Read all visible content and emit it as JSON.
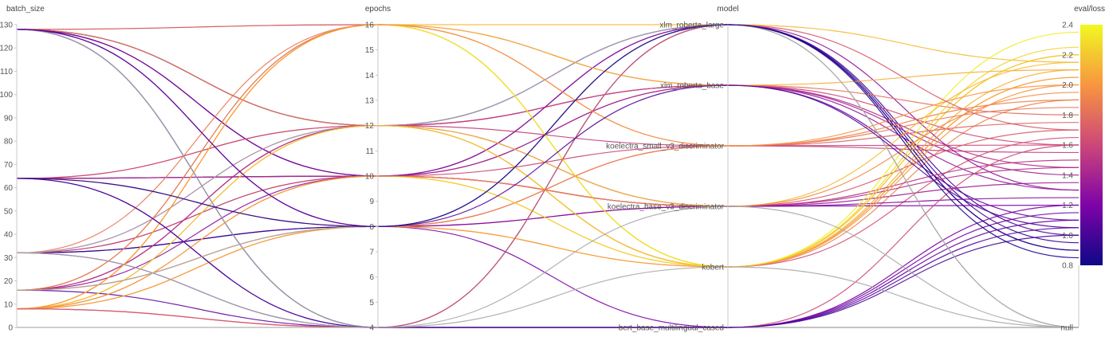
{
  "chart_data": {
    "type": "parallel_coordinates",
    "axes": [
      {
        "name": "batch_size",
        "kind": "numeric",
        "range": [
          0,
          130
        ],
        "ticks": [
          0,
          10,
          20,
          30,
          40,
          50,
          60,
          70,
          80,
          90,
          100,
          110,
          120,
          130
        ]
      },
      {
        "name": "epochs",
        "kind": "numeric",
        "range": [
          4,
          16
        ],
        "ticks": [
          4,
          5,
          6,
          7,
          8,
          9,
          10,
          11,
          12,
          13,
          14,
          15,
          16
        ]
      },
      {
        "name": "model",
        "kind": "categorical",
        "categories": [
          "bert_base_multilingual_cased",
          "kobert",
          "koelectra_base_v3_discriminator",
          "koelectra_small_v3_discriminator",
          "xlm_roberta_base",
          "xlm_roberta_large"
        ]
      },
      {
        "name": "eval/loss",
        "kind": "numeric",
        "range": [
          0.8,
          2.4
        ],
        "ticks": [
          0.8,
          1.0,
          1.2,
          1.4,
          1.6,
          1.8,
          2.0,
          2.2,
          2.4
        ],
        "null_label": "null"
      }
    ],
    "colorbar": {
      "range": [
        0.8,
        2.4
      ],
      "colors": [
        "#0d0887",
        "#7e03a8",
        "#cc4778",
        "#f89540",
        "#f0f921"
      ]
    },
    "null_color": "#aaaaaa",
    "runs": [
      {
        "batch_size": 128,
        "epochs": 16,
        "model": "xlm_roberta_large",
        "eval_loss": 2.15
      },
      {
        "batch_size": 128,
        "epochs": 12,
        "model": "xlm_roberta_base",
        "eval_loss": 1.3
      },
      {
        "batch_size": 128,
        "epochs": 12,
        "model": "xlm_roberta_large",
        "eval_loss": 0.95
      },
      {
        "batch_size": 128,
        "epochs": 10,
        "model": "koelectra_base_v3_discriminator",
        "eval_loss": 1.35
      },
      {
        "batch_size": 128,
        "epochs": 10,
        "model": "koelectra_small_v3_discriminator",
        "eval_loss": 1.6
      },
      {
        "batch_size": 128,
        "epochs": 8,
        "model": "bert_base_multilingual_cased",
        "eval_loss": 1.2
      },
      {
        "batch_size": 128,
        "epochs": 4,
        "model": "bert_base_multilingual_cased",
        "eval_loss": null
      },
      {
        "batch_size": 128,
        "epochs": 12,
        "model": "kobert",
        "eval_loss": 1.9
      },
      {
        "batch_size": 128,
        "epochs": 16,
        "model": "kobert",
        "eval_loss": 1.65
      },
      {
        "batch_size": 128,
        "epochs": 4,
        "model": "xlm_roberta_large",
        "eval_loss": 0.9
      },
      {
        "batch_size": 128,
        "epochs": 10,
        "model": "xlm_roberta_base",
        "eval_loss": 1.1
      },
      {
        "batch_size": 64,
        "epochs": 12,
        "model": "kobert",
        "eval_loss": 2.05
      },
      {
        "batch_size": 64,
        "epochs": 10,
        "model": "koelectra_base_v3_discriminator",
        "eval_loss": 1.25
      },
      {
        "batch_size": 64,
        "epochs": 10,
        "model": "xlm_roberta_large",
        "eval_loss": 1.0
      },
      {
        "batch_size": 64,
        "epochs": 12,
        "model": "koelectra_small_v3_discriminator",
        "eval_loss": 1.55
      },
      {
        "batch_size": 64,
        "epochs": 4,
        "model": "bert_base_multilingual_cased",
        "eval_loss": 1.15
      },
      {
        "batch_size": 64,
        "epochs": 10,
        "model": "xlm_roberta_base",
        "eval_loss": 1.45
      },
      {
        "batch_size": 64,
        "epochs": 8,
        "model": "koelectra_base_v3_discriminator",
        "eval_loss": 1.7
      },
      {
        "batch_size": 32,
        "epochs": 12,
        "model": "xlm_roberta_base",
        "eval_loss": 1.4
      },
      {
        "batch_size": 32,
        "epochs": 10,
        "model": "kobert",
        "eval_loss": 2.1
      },
      {
        "batch_size": 32,
        "epochs": 8,
        "model": "koelectra_base_v3_discriminator",
        "eval_loss": 1.2
      },
      {
        "batch_size": 32,
        "epochs": 8,
        "model": "xlm_roberta_large",
        "eval_loss": 0.9
      },
      {
        "batch_size": 32,
        "epochs": 16,
        "model": "koelectra_small_v3_discriminator",
        "eval_loss": 1.85
      },
      {
        "batch_size": 32,
        "epochs": 4,
        "model": "bert_base_multilingual_cased",
        "eval_loss": 1.05
      },
      {
        "batch_size": 32,
        "epochs": 10,
        "model": "koelectra_base_v3_discriminator",
        "eval_loss": 1.5
      },
      {
        "batch_size": 32,
        "epochs": 12,
        "model": "xlm_roberta_large",
        "eval_loss": null
      },
      {
        "batch_size": 16,
        "epochs": 16,
        "model": "kobert",
        "eval_loss": 2.2
      },
      {
        "batch_size": 16,
        "epochs": 12,
        "model": "xlm_roberta_base",
        "eval_loss": 1.6
      },
      {
        "batch_size": 16,
        "epochs": 8,
        "model": "koelectra_small_v3_discriminator",
        "eval_loss": 1.75
      },
      {
        "batch_size": 16,
        "epochs": 10,
        "model": "xlm_roberta_large",
        "eval_loss": 1.3
      },
      {
        "batch_size": 16,
        "epochs": 4,
        "model": "bert_base_multilingual_cased",
        "eval_loss": 1.1
      },
      {
        "batch_size": 16,
        "epochs": 12,
        "model": "koelectra_base_v3_discriminator",
        "eval_loss": 1.45
      },
      {
        "batch_size": 16,
        "epochs": 8,
        "model": "kobert",
        "eval_loss": 2.0
      },
      {
        "batch_size": 16,
        "epochs": 16,
        "model": "xlm_roberta_base",
        "eval_loss": 1.8
      },
      {
        "batch_size": 8,
        "epochs": 16,
        "model": "kobert",
        "eval_loss": 2.35
      },
      {
        "batch_size": 8,
        "epochs": 12,
        "model": "kobert",
        "eval_loss": 2.2
      },
      {
        "batch_size": 8,
        "epochs": 8,
        "model": "koelectra_small_v3_discriminator",
        "eval_loss": 1.9
      },
      {
        "batch_size": 8,
        "epochs": 10,
        "model": "kobert",
        "eval_loss": 2.25
      },
      {
        "batch_size": 8,
        "epochs": 4,
        "model": "bert_base_multilingual_cased",
        "eval_loss": 1.6
      },
      {
        "batch_size": 8,
        "epochs": 16,
        "model": "xlm_roberta_base",
        "eval_loss": 2.1
      },
      {
        "batch_size": 8,
        "epochs": 12,
        "model": "koelectra_base_v3_discriminator",
        "eval_loss": 2.15
      },
      {
        "batch_size": 8,
        "epochs": 8,
        "model": "kobert",
        "eval_loss": 2.05
      },
      {
        "batch_size": 8,
        "epochs": 10,
        "model": "koelectra_base_v3_discriminator",
        "eval_loss": 1.95
      },
      {
        "batch_size": 8,
        "epochs": 16,
        "model": "koelectra_small_v3_discriminator",
        "eval_loss": 2.0
      },
      {
        "batch_size": 8,
        "epochs": 4,
        "model": "xlm_roberta_large",
        "eval_loss": 1.7
      },
      {
        "batch_size": 0,
        "epochs": 4,
        "model": "bert_base_multilingual_cased",
        "eval_loss": null
      },
      {
        "batch_size": 128,
        "epochs": 4,
        "model": "koelectra_base_v3_discriminator",
        "eval_loss": null
      },
      {
        "batch_size": 64,
        "epochs": 4,
        "model": "bert_base_multilingual_cased",
        "eval_loss": 1.0
      },
      {
        "batch_size": 16,
        "epochs": 8,
        "model": "xlm_roberta_large",
        "eval_loss": null
      },
      {
        "batch_size": 32,
        "epochs": 4,
        "model": "kobert",
        "eval_loss": null
      },
      {
        "batch_size": 128,
        "epochs": 8,
        "model": "xlm_roberta_base",
        "eval_loss": 1.05
      },
      {
        "batch_size": 64,
        "epochs": 8,
        "model": "xlm_roberta_large",
        "eval_loss": 0.85
      }
    ]
  }
}
